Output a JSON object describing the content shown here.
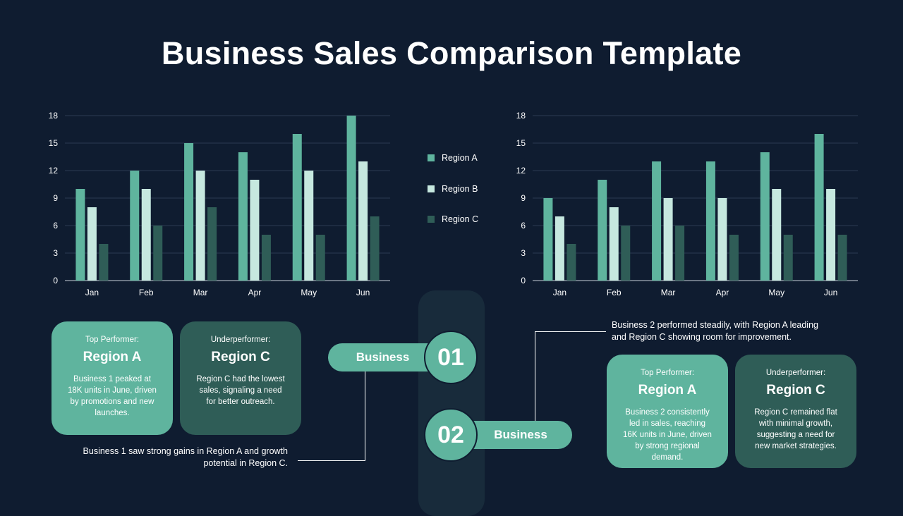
{
  "title": "Business Sales Comparison Template",
  "colors": {
    "region_a": "#5fb49e",
    "region_b": "#c6e8df",
    "region_c": "#2f5d57",
    "background": "#0f1c30"
  },
  "legend": [
    "Region A",
    "Region B",
    "Region C"
  ],
  "chart_data": [
    {
      "type": "bar",
      "categories": [
        "Jan",
        "Feb",
        "Mar",
        "Apr",
        "May",
        "Jun"
      ],
      "series": [
        {
          "name": "Region A",
          "values": [
            10,
            12,
            15,
            14,
            16,
            18
          ]
        },
        {
          "name": "Region B",
          "values": [
            8,
            10,
            12,
            11,
            12,
            13
          ]
        },
        {
          "name": "Region C",
          "values": [
            4,
            6,
            8,
            5,
            5,
            7
          ]
        }
      ],
      "yticks": [
        "0",
        "3",
        "6",
        "9",
        "12",
        "15",
        "18"
      ],
      "ylim": [
        0,
        18
      ],
      "grid": true,
      "legend_position": "right"
    },
    {
      "type": "bar",
      "categories": [
        "Jan",
        "Feb",
        "Mar",
        "Apr",
        "May",
        "Jun"
      ],
      "series": [
        {
          "name": "Region A",
          "values": [
            9,
            11,
            13,
            13,
            14,
            16
          ]
        },
        {
          "name": "Region B",
          "values": [
            7,
            8,
            9,
            9,
            10,
            10
          ]
        },
        {
          "name": "Region C",
          "values": [
            4,
            6,
            6,
            5,
            5,
            5
          ]
        }
      ],
      "yticks": [
        "0",
        "3",
        "6",
        "9",
        "12",
        "15",
        "18"
      ],
      "ylim": [
        0,
        18
      ],
      "grid": true
    }
  ],
  "business1": {
    "label": "Business",
    "number": "01",
    "summary": "Business 1 saw strong gains in Region A and growth potential in Region C.",
    "top": {
      "kicker": "Top Performer:",
      "region": "Region A",
      "desc": "Business 1 peaked at 18K units in June, driven by promotions and new launches."
    },
    "under": {
      "kicker": "Underperformer:",
      "region": "Region C",
      "desc": "Region C had the lowest sales, signaling a need for better outreach."
    }
  },
  "business2": {
    "label": "Business",
    "number": "02",
    "summary": "Business 2 performed steadily, with Region A leading and Region C showing room for improvement.",
    "top": {
      "kicker": "Top Performer:",
      "region": "Region A",
      "desc": "Business 2 consistently led in sales, reaching 16K units in June, driven by strong regional demand."
    },
    "under": {
      "kicker": "Underperformer:",
      "region": "Region C",
      "desc": "Region C remained flat with minimal growth, suggesting a need for new market strategies."
    }
  }
}
